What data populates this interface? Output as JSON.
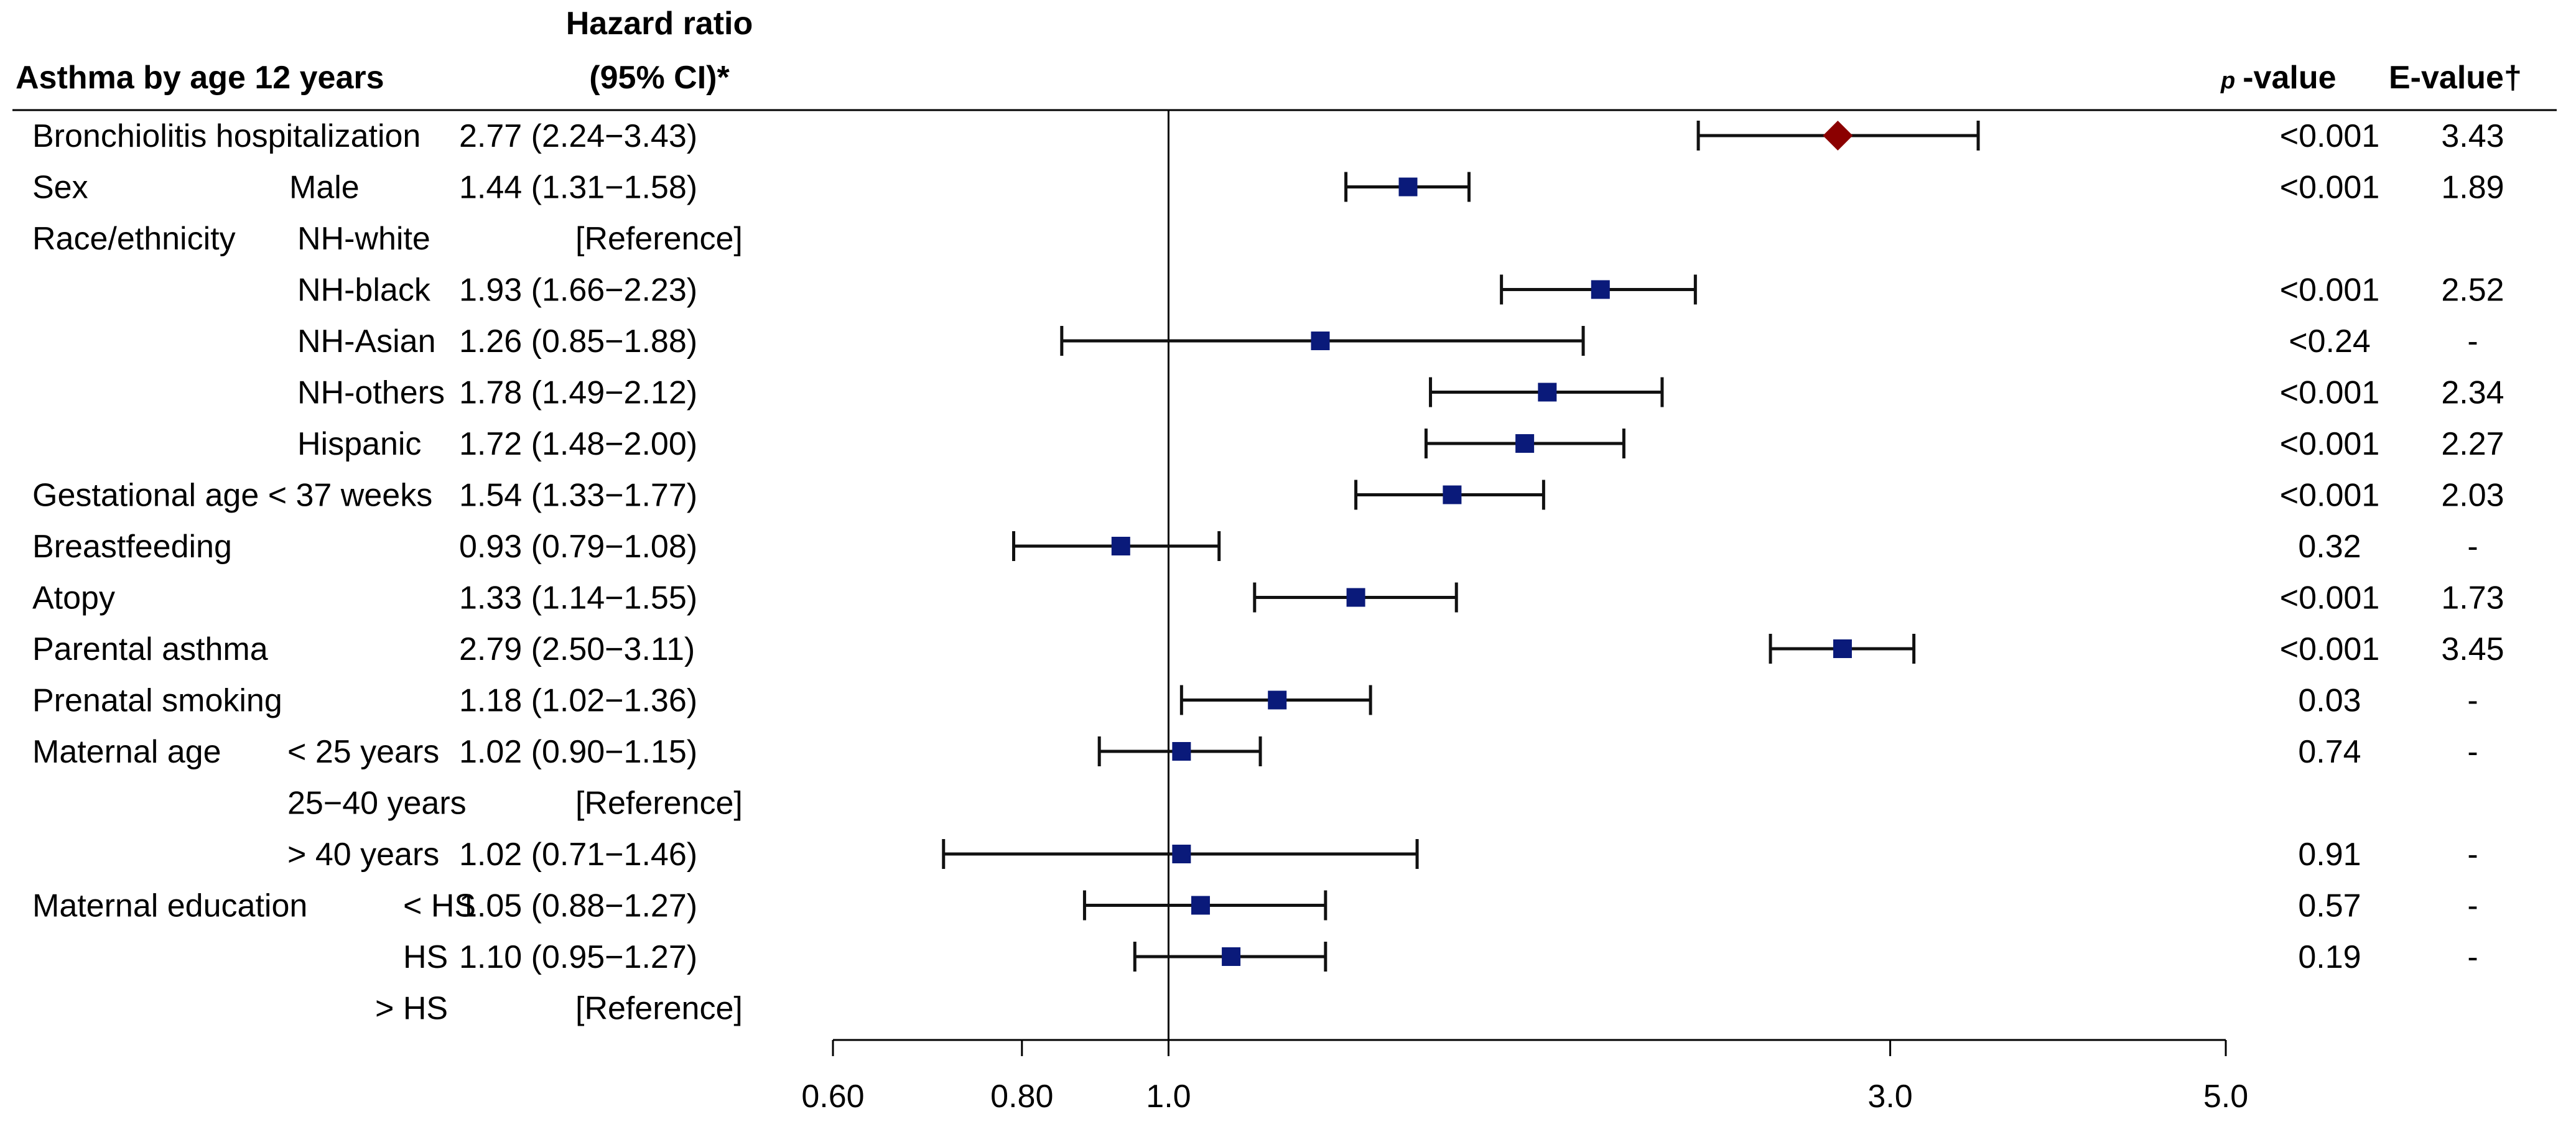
{
  "chart_data": {
    "type": "forest",
    "headers": {
      "outcome": "Asthma by age 12 years",
      "hr_line1": "Hazard ratio",
      "hr_line2": "(95% CI)*",
      "p_prefix": "p",
      "p_suffix": "-value",
      "evalue": "E-value†"
    },
    "x_axis": {
      "scale": "log",
      "range": [
        0.6,
        5.0
      ],
      "reference_line": 1.0,
      "ticks": [
        0.6,
        0.8,
        1.0,
        3.0,
        5.0
      ],
      "tick_labels": [
        "0.60",
        "0.80",
        "1.0",
        "3.0",
        "5.0"
      ]
    },
    "rows": [
      {
        "variable": "Bronchiolitis hospitalization",
        "level": "",
        "hr_text": "2.77 (2.24−3.43)",
        "hr": 2.77,
        "lo": 2.24,
        "hi": 3.43,
        "p": "<0.001",
        "evalue": "3.43",
        "marker": "diamond",
        "color": "#8b0000"
      },
      {
        "variable": "Sex",
        "level": "Male",
        "hr_text": "1.44 (1.31−1.58)",
        "hr": 1.44,
        "lo": 1.31,
        "hi": 1.58,
        "p": "<0.001",
        "evalue": "1.89",
        "marker": "square",
        "color": "#0a1a7a"
      },
      {
        "variable": "Race/ethnicity",
        "level": "NH-white",
        "hr_text": "[Reference]",
        "p": "",
        "evalue": ""
      },
      {
        "variable": "",
        "level": "NH-black",
        "hr_text": "1.93 (1.66−2.23)",
        "hr": 1.93,
        "lo": 1.66,
        "hi": 2.23,
        "p": "<0.001",
        "evalue": "2.52",
        "marker": "square",
        "color": "#0a1a7a"
      },
      {
        "variable": "",
        "level": "NH-Asian",
        "hr_text": "1.26 (0.85−1.88)",
        "hr": 1.26,
        "lo": 0.85,
        "hi": 1.88,
        "p": "<0.24",
        "evalue": "-",
        "marker": "square",
        "color": "#0a1a7a"
      },
      {
        "variable": "",
        "level": "NH-others",
        "hr_text": "1.78 (1.49−2.12)",
        "hr": 1.78,
        "lo": 1.49,
        "hi": 2.12,
        "p": "<0.001",
        "evalue": "2.34",
        "marker": "square",
        "color": "#0a1a7a"
      },
      {
        "variable": "",
        "level": "Hispanic",
        "hr_text": "1.72 (1.48−2.00)",
        "hr": 1.72,
        "lo": 1.48,
        "hi": 2.0,
        "p": "<0.001",
        "evalue": "2.27",
        "marker": "square",
        "color": "#0a1a7a"
      },
      {
        "variable": "Gestational age < 37 weeks",
        "level": "",
        "hr_text": "1.54 (1.33−1.77)",
        "hr": 1.54,
        "lo": 1.33,
        "hi": 1.77,
        "p": "<0.001",
        "evalue": "2.03",
        "marker": "square",
        "color": "#0a1a7a"
      },
      {
        "variable": "Breastfeeding",
        "level": "",
        "hr_text": "0.93 (0.79−1.08)",
        "hr": 0.93,
        "lo": 0.79,
        "hi": 1.08,
        "p": "0.32",
        "evalue": "-",
        "marker": "square",
        "color": "#0a1a7a"
      },
      {
        "variable": "Atopy",
        "level": "",
        "hr_text": "1.33 (1.14−1.55)",
        "hr": 1.33,
        "lo": 1.14,
        "hi": 1.55,
        "p": "<0.001",
        "evalue": "1.73",
        "marker": "square",
        "color": "#0a1a7a"
      },
      {
        "variable": "Parental asthma",
        "level": "",
        "hr_text": "2.79 (2.50−3.11)",
        "hr": 2.79,
        "lo": 2.5,
        "hi": 3.11,
        "p": "<0.001",
        "evalue": "3.45",
        "marker": "square",
        "color": "#0a1a7a"
      },
      {
        "variable": "Prenatal smoking",
        "level": "",
        "hr_text": "1.18 (1.02−1.36)",
        "hr": 1.18,
        "lo": 1.02,
        "hi": 1.36,
        "p": "0.03",
        "evalue": "-",
        "marker": "square",
        "color": "#0a1a7a"
      },
      {
        "variable": "Maternal age",
        "level": "< 25 years",
        "hr_text": "1.02 (0.90−1.15)",
        "hr": 1.02,
        "lo": 0.9,
        "hi": 1.15,
        "p": "0.74",
        "evalue": "-",
        "marker": "square",
        "color": "#0a1a7a"
      },
      {
        "variable": "",
        "level": "25−40 years",
        "hr_text": "[Reference]",
        "p": "",
        "evalue": ""
      },
      {
        "variable": "",
        "level": "> 40 years",
        "hr_text": "1.02 (0.71−1.46)",
        "hr": 1.02,
        "lo": 0.71,
        "hi": 1.46,
        "p": "0.91",
        "evalue": "-",
        "marker": "square",
        "color": "#0a1a7a"
      },
      {
        "variable": "Maternal education",
        "level": "< HS",
        "hr_text": "1.05 (0.88−1.27)",
        "hr": 1.05,
        "lo": 0.88,
        "hi": 1.27,
        "p": "0.57",
        "evalue": "-",
        "marker": "square",
        "color": "#0a1a7a"
      },
      {
        "variable": "",
        "level": "HS",
        "hr_text": "1.10 (0.95−1.27)",
        "hr": 1.1,
        "lo": 0.95,
        "hi": 1.27,
        "p": "0.19",
        "evalue": "-",
        "marker": "square",
        "color": "#0a1a7a"
      },
      {
        "variable": "",
        "level": "> HS",
        "hr_text": "[Reference]",
        "p": "",
        "evalue": ""
      }
    ]
  }
}
